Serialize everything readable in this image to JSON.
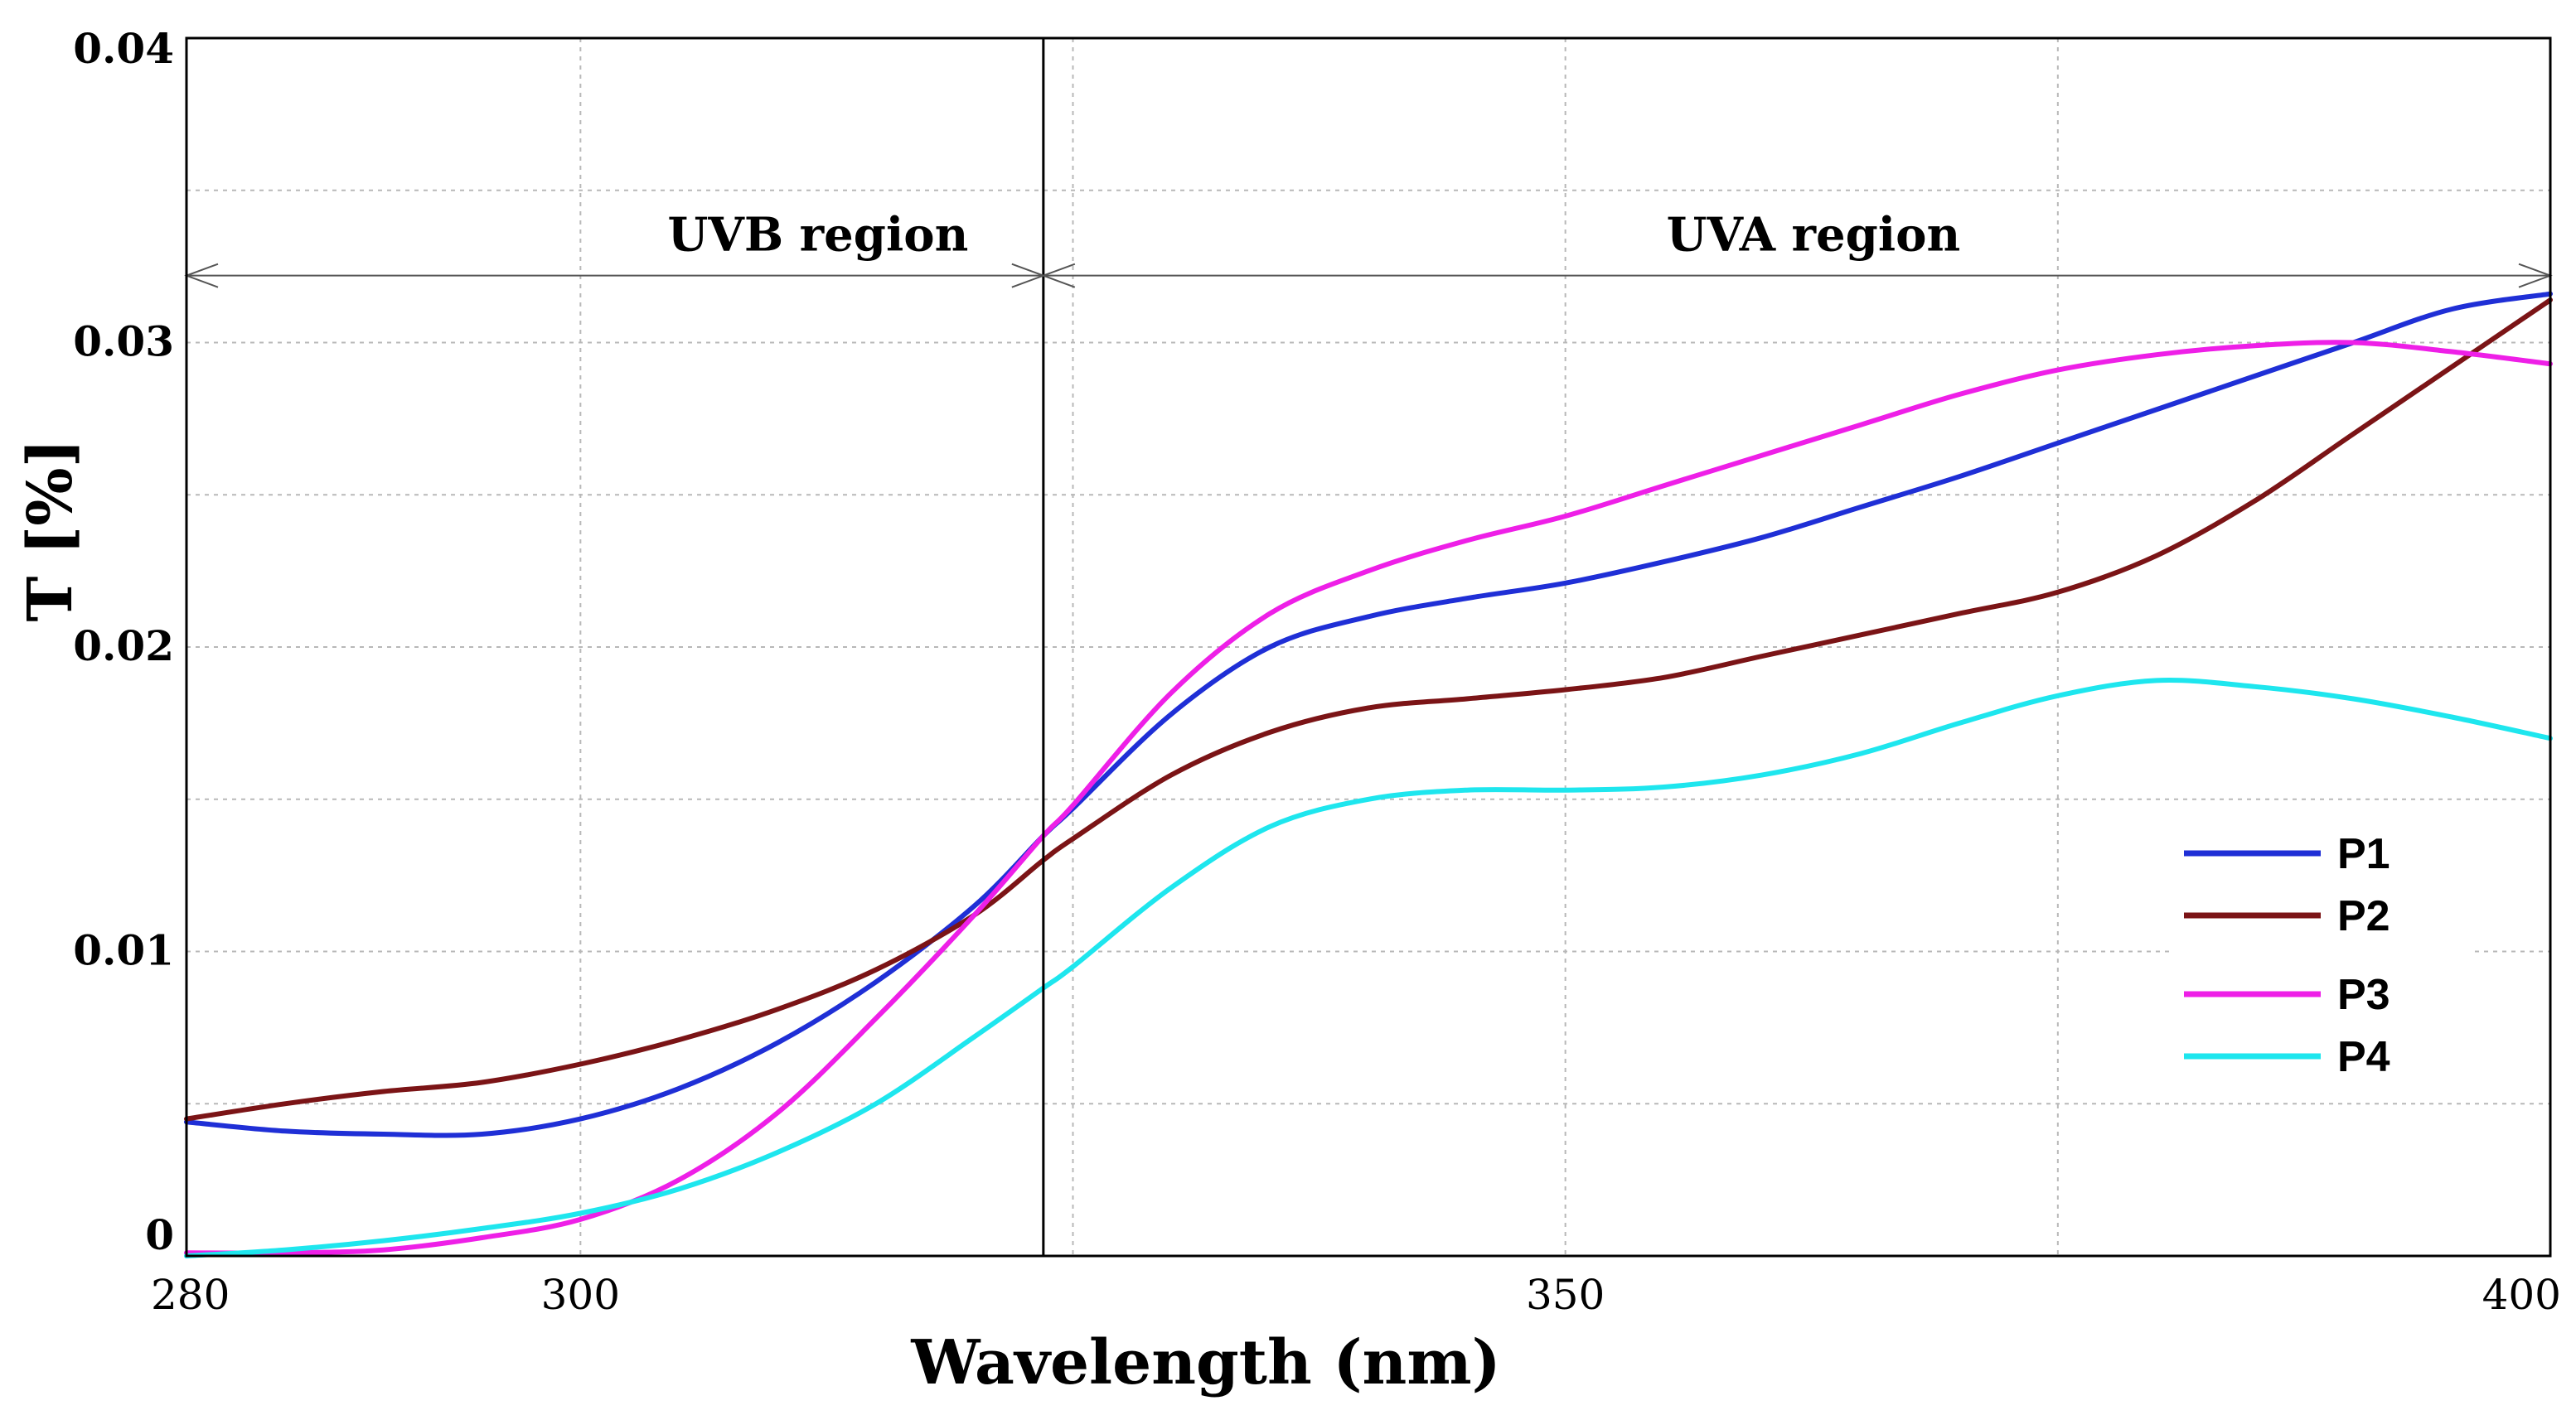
{
  "chart_data": {
    "type": "line",
    "title": "",
    "xlabel": "Wavelength (nm)",
    "ylabel": "T [%]",
    "xlim": [
      280,
      400
    ],
    "ylim": [
      0,
      0.04
    ],
    "grid": true,
    "legend_position": "bottom-right",
    "x_ticks": [
      {
        "value": 280,
        "label": "280"
      },
      {
        "value": 300,
        "label": "300"
      },
      {
        "value": 350,
        "label": "350"
      },
      {
        "value": 400,
        "label": "400"
      }
    ],
    "y_ticks": [
      {
        "value": 0,
        "label": "0"
      },
      {
        "value": 0.01,
        "label": "0.01"
      },
      {
        "value": 0.02,
        "label": "0.02"
      },
      {
        "value": 0.03,
        "label": "0.03"
      },
      {
        "value": 0.04,
        "label": "0.04"
      }
    ],
    "x_grid": [
      300,
      325,
      350,
      375,
      400
    ],
    "y_grid": [
      0.005,
      0.01,
      0.015,
      0.02,
      0.025,
      0.03,
      0.035
    ],
    "divider_x": 323.5,
    "regions": [
      {
        "label": "UVB region",
        "from": 280,
        "to": 323.5,
        "y": 0.0322
      },
      {
        "label": "UVA region",
        "from": 323.5,
        "to": 400,
        "y": 0.0322
      }
    ],
    "x": [
      280,
      285,
      290,
      295,
      300,
      305,
      310,
      315,
      320,
      323.5,
      325,
      330,
      335,
      340,
      345,
      350,
      355,
      360,
      365,
      370,
      375,
      380,
      385,
      390,
      395,
      400
    ],
    "series": [
      {
        "name": "P1",
        "color": "#1f2fd6",
        "values": [
          0.0044,
          0.0041,
          0.004,
          0.004,
          0.0045,
          0.0055,
          0.007,
          0.009,
          0.0115,
          0.0138,
          0.0147,
          0.0178,
          0.02,
          0.021,
          0.0216,
          0.0221,
          0.0228,
          0.0236,
          0.0246,
          0.0256,
          0.0267,
          0.0278,
          0.0289,
          0.03,
          0.0311,
          0.0316
        ]
      },
      {
        "name": "P2",
        "color": "#7b1416",
        "values": [
          0.0045,
          0.005,
          0.0054,
          0.0057,
          0.0063,
          0.0071,
          0.0081,
          0.0094,
          0.0112,
          0.013,
          0.0137,
          0.0158,
          0.0172,
          0.018,
          0.0183,
          0.0186,
          0.019,
          0.0197,
          0.0204,
          0.0211,
          0.0218,
          0.023,
          0.0248,
          0.027,
          0.0292,
          0.0314
        ]
      },
      {
        "name": "P3",
        "color": "#ee1fe7",
        "values": [
          0.0001,
          0.0001,
          0.0002,
          0.0006,
          0.0012,
          0.0025,
          0.0047,
          0.0078,
          0.0112,
          0.0138,
          0.0148,
          0.0185,
          0.0211,
          0.0225,
          0.0235,
          0.0243,
          0.0253,
          0.0263,
          0.0273,
          0.0283,
          0.0291,
          0.0296,
          0.0299,
          0.03,
          0.0297,
          0.0293
        ]
      },
      {
        "name": "P4",
        "color": "#1ee6ee",
        "values": [
          0.0,
          0.0002,
          0.0005,
          0.0009,
          0.0014,
          0.0022,
          0.0034,
          0.005,
          0.0072,
          0.0088,
          0.0095,
          0.0121,
          0.0141,
          0.015,
          0.0153,
          0.0153,
          0.0154,
          0.0158,
          0.0165,
          0.0175,
          0.0184,
          0.0189,
          0.0187,
          0.0183,
          0.0177,
          0.017
        ]
      }
    ]
  }
}
